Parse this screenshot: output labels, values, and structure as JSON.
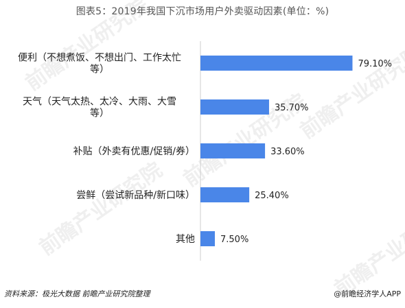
{
  "watermark": "前瞻产业研究院",
  "footer": {
    "source": "资料来源：极光大数据 前瞻产业研究院整理",
    "brand": "@前瞻经济学人APP"
  },
  "colors": {
    "bar": "#4a86e8",
    "axis": "#cccccc",
    "text": "#222222"
  },
  "chart_data": {
    "type": "bar",
    "orientation": "horizontal",
    "title": "图表5：2019年我国下沉市场用户外卖驱动因素(单位：%)",
    "categories": [
      "便利（不想煮饭、不想出门、工作太忙等）",
      "天气（天气太热、太冷、大雨、大雪等）",
      "补贴（外卖有优惠/促销/券）",
      "尝鲜（尝试新品种/新口味）",
      "其他"
    ],
    "category_lines": [
      [
        "便利（不想煮饭、不想出门、工作太忙",
        "等）"
      ],
      [
        "天气（天气太热、太冷、大雨、大雪",
        "等）"
      ],
      [
        "补贴（外卖有优惠/促销/券）"
      ],
      [
        "尝鲜（尝试新品种/新口味）"
      ],
      [
        "其他"
      ]
    ],
    "values": [
      79.1,
      35.7,
      33.6,
      25.4,
      7.5
    ],
    "value_labels": [
      "79.10%",
      "35.70%",
      "33.60%",
      "25.40%",
      "7.50%"
    ],
    "xlim": [
      0,
      100
    ],
    "grid": false,
    "legend": "none"
  }
}
